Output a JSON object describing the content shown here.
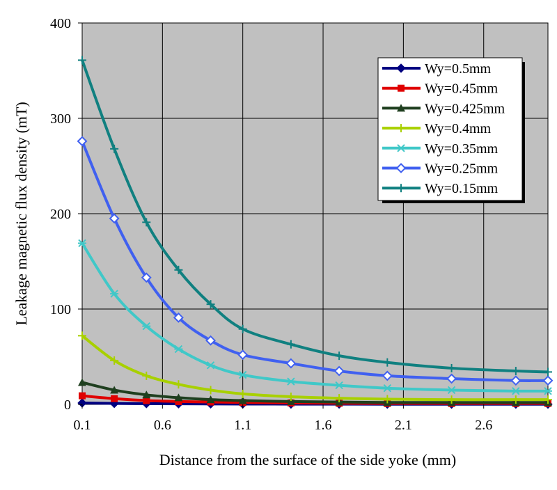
{
  "chart_data": {
    "type": "line",
    "title": "",
    "xlabel": "Distance from the surface of the side yoke (mm)",
    "ylabel": "Leakage magnetic flux density (mT)",
    "xlim": [
      0.1,
      3.0
    ],
    "ylim": [
      0,
      400
    ],
    "x_ticks": [
      0.1,
      0.6,
      1.1,
      1.6,
      2.1,
      2.6
    ],
    "x_tick_labels": [
      "0.1",
      "0.6",
      "1.1",
      "1.6",
      "2.1",
      "2.6"
    ],
    "y_ticks": [
      0,
      100,
      200,
      300,
      400
    ],
    "y_tick_labels": [
      "0",
      "100",
      "200",
      "300",
      "400"
    ],
    "grid": true,
    "plot_background": "#c0c0c0",
    "legend_position": "top-right",
    "x": [
      0.1,
      0.3,
      0.5,
      0.7,
      0.9,
      1.1,
      1.4,
      1.7,
      2.0,
      2.4,
      2.8,
      3.0
    ],
    "series": [
      {
        "name": "Wy=0.5mm",
        "color": "#000080",
        "marker": "diamond-filled",
        "values": [
          1.5,
          1,
          0.8,
          0.6,
          0.5,
          0.4,
          0.3,
          0.3,
          0.2,
          0.2,
          0.2,
          0.2
        ]
      },
      {
        "name": "Wy=0.45mm",
        "color": "#e00000",
        "marker": "square",
        "values": [
          9,
          6,
          4,
          3,
          2.5,
          2,
          1.5,
          1.2,
          1,
          1,
          1,
          1
        ]
      },
      {
        "name": "Wy=0.425mm",
        "color": "#1f3f1f",
        "marker": "triangle",
        "values": [
          23,
          15,
          10,
          7,
          5,
          4,
          3,
          2.5,
          2,
          2,
          2,
          2
        ]
      },
      {
        "name": "Wy=0.4mm",
        "color": "#a8d000",
        "marker": "plus",
        "values": [
          72,
          46,
          30,
          21,
          15,
          11,
          8,
          6.5,
          5.5,
          5,
          5,
          5
        ]
      },
      {
        "name": "Wy=0.35mm",
        "color": "#40c8c8",
        "marker": "asterisk",
        "values": [
          169,
          116,
          82,
          58,
          41,
          31,
          24,
          20,
          17,
          15,
          14,
          14
        ]
      },
      {
        "name": "Wy=0.25mm",
        "color": "#4060f0",
        "marker": "diamond-open",
        "values": [
          276,
          195,
          133,
          91,
          67,
          52,
          43,
          35,
          30,
          27,
          25,
          25
        ]
      },
      {
        "name": "Wy=0.15mm",
        "color": "#108080",
        "marker": "plus",
        "values": [
          361,
          268,
          191,
          141,
          105,
          79,
          63,
          51,
          44,
          38,
          35,
          34
        ]
      }
    ]
  }
}
